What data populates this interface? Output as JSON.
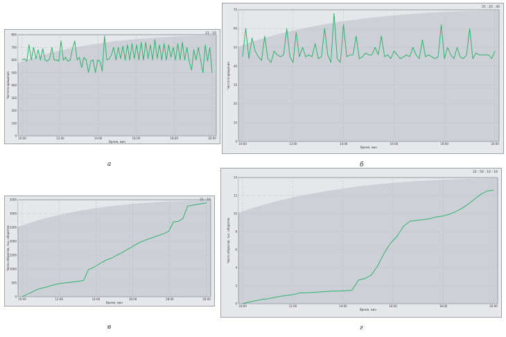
{
  "colors": {
    "line": "#2db36b",
    "plot_bg": "#cdd0d6",
    "frame": "#ffffff",
    "grid": "#b4b8c0",
    "text": "#333333"
  },
  "panels": [
    {
      "caption": "а",
      "corner_label": "21 : 10"
    },
    {
      "caption": "б",
      "corner_label": "25 : 20 : 40"
    },
    {
      "caption": "в",
      "corner_label": "21 : 10"
    },
    {
      "caption": "г",
      "corner_label": "22 : 50 : 10 : 16"
    }
  ],
  "chart_data": [
    {
      "type": "line",
      "title": "",
      "xlabel": "Время, мин",
      "ylabel": "Частота вращения",
      "x_ticks": [
        "10:00",
        "12:00",
        "14:00",
        "16:00",
        "18:00",
        "20:00"
      ],
      "y_ticks": [
        "0",
        "100",
        "200",
        "300",
        "400",
        "500",
        "600",
        "700",
        "800"
      ],
      "ylim": [
        0,
        800
      ],
      "grid": true,
      "series": [
        {
          "values": [
            600,
            610,
            590,
            720,
            600,
            700,
            610,
            680,
            600,
            690,
            600,
            590,
            610,
            700,
            600,
            600,
            590,
            750,
            600,
            620,
            590,
            600,
            690,
            750,
            600,
            620,
            540,
            620,
            600,
            500,
            590,
            600,
            500,
            600,
            590,
            510,
            790,
            600,
            610,
            640,
            700,
            600,
            700,
            610,
            710,
            600,
            720,
            600,
            730,
            610,
            720,
            600,
            740,
            600,
            740,
            610,
            720,
            600,
            760,
            610,
            720,
            600,
            730,
            600,
            720,
            620,
            700,
            600,
            730,
            600,
            740,
            600,
            700,
            590,
            520,
            680,
            600,
            700,
            600,
            500,
            720,
            590,
            700,
            500
          ]
        }
      ]
    },
    {
      "type": "line",
      "title": "",
      "xlabel": "Время, мин",
      "ylabel": "Частота вращения",
      "x_ticks": [
        "10:00",
        "12:00",
        "14:00",
        "16:00",
        "18:00",
        "20:00"
      ],
      "y_ticks": [
        "0",
        "10",
        "20",
        "30",
        "40",
        "50",
        "60",
        "70"
      ],
      "ylim": [
        0,
        70
      ],
      "grid": true,
      "series": [
        {
          "values": [
            45,
            60,
            44,
            55,
            48,
            45,
            43,
            56,
            44,
            42,
            48,
            46,
            45,
            46,
            60,
            45,
            42,
            58,
            45,
            50,
            45,
            46,
            45,
            52,
            44,
            45,
            60,
            46,
            42,
            68,
            44,
            42,
            62,
            45,
            46,
            46,
            56,
            44,
            45,
            47,
            46,
            46,
            50,
            46,
            56,
            45,
            46,
            44,
            48,
            46,
            44,
            45,
            46,
            45,
            50,
            46,
            44,
            54,
            45,
            46,
            45,
            44,
            45,
            62,
            44,
            50,
            46,
            44,
            50,
            45,
            44,
            46,
            60,
            44,
            47,
            46,
            46,
            46,
            46,
            44,
            48
          ]
        }
      ]
    },
    {
      "type": "line",
      "title": "",
      "xlabel": "Время, мин",
      "ylabel": "Число оборотов, тыс. оборотов",
      "x_ticks": [
        "10:00",
        "12:00",
        "14:00",
        "16:00",
        "18:00",
        "20:00"
      ],
      "y_ticks": [
        "0",
        "500",
        "1000",
        "1500",
        "2000",
        "2500",
        "3000",
        "3500"
      ],
      "ylim": [
        0,
        3500
      ],
      "grid": true,
      "series": [
        {
          "values": [
            0,
            90,
            160,
            250,
            310,
            340,
            400,
            440,
            480,
            500,
            520,
            540,
            560,
            590,
            980,
            1050,
            1150,
            1250,
            1340,
            1400,
            1500,
            1580,
            1680,
            1780,
            1880,
            1970,
            2040,
            2100,
            2160,
            2220,
            2280,
            2360,
            2700,
            2720,
            2820,
            3270,
            3300,
            3330,
            3360,
            3380
          ]
        }
      ]
    },
    {
      "type": "line",
      "title": "",
      "xlabel": "Время, мин",
      "ylabel": "Число оборотов, тыс. оборотов",
      "x_ticks": [
        "10:00",
        "12:00",
        "14:00",
        "16:00",
        "18:00",
        "20:00"
      ],
      "y_ticks": [
        "0",
        "2",
        "4",
        "6",
        "8",
        "10",
        "12",
        "14"
      ],
      "ylim": [
        0,
        15
      ],
      "grid": true,
      "series": [
        {
          "values": [
            0,
            0.2,
            0.35,
            0.5,
            0.6,
            0.75,
            0.9,
            1.0,
            1.1,
            1.3,
            1.3,
            1.35,
            1.4,
            1.45,
            1.5,
            1.5,
            1.55,
            1.6,
            2.8,
            3.0,
            3.4,
            4.5,
            6.0,
            7.2,
            8.0,
            9.2,
            9.8,
            9.9,
            10.0,
            10.1,
            10.3,
            10.4,
            10.6,
            10.9,
            11.3,
            11.8,
            12.4,
            13.0,
            13.4,
            13.5
          ]
        }
      ]
    }
  ]
}
